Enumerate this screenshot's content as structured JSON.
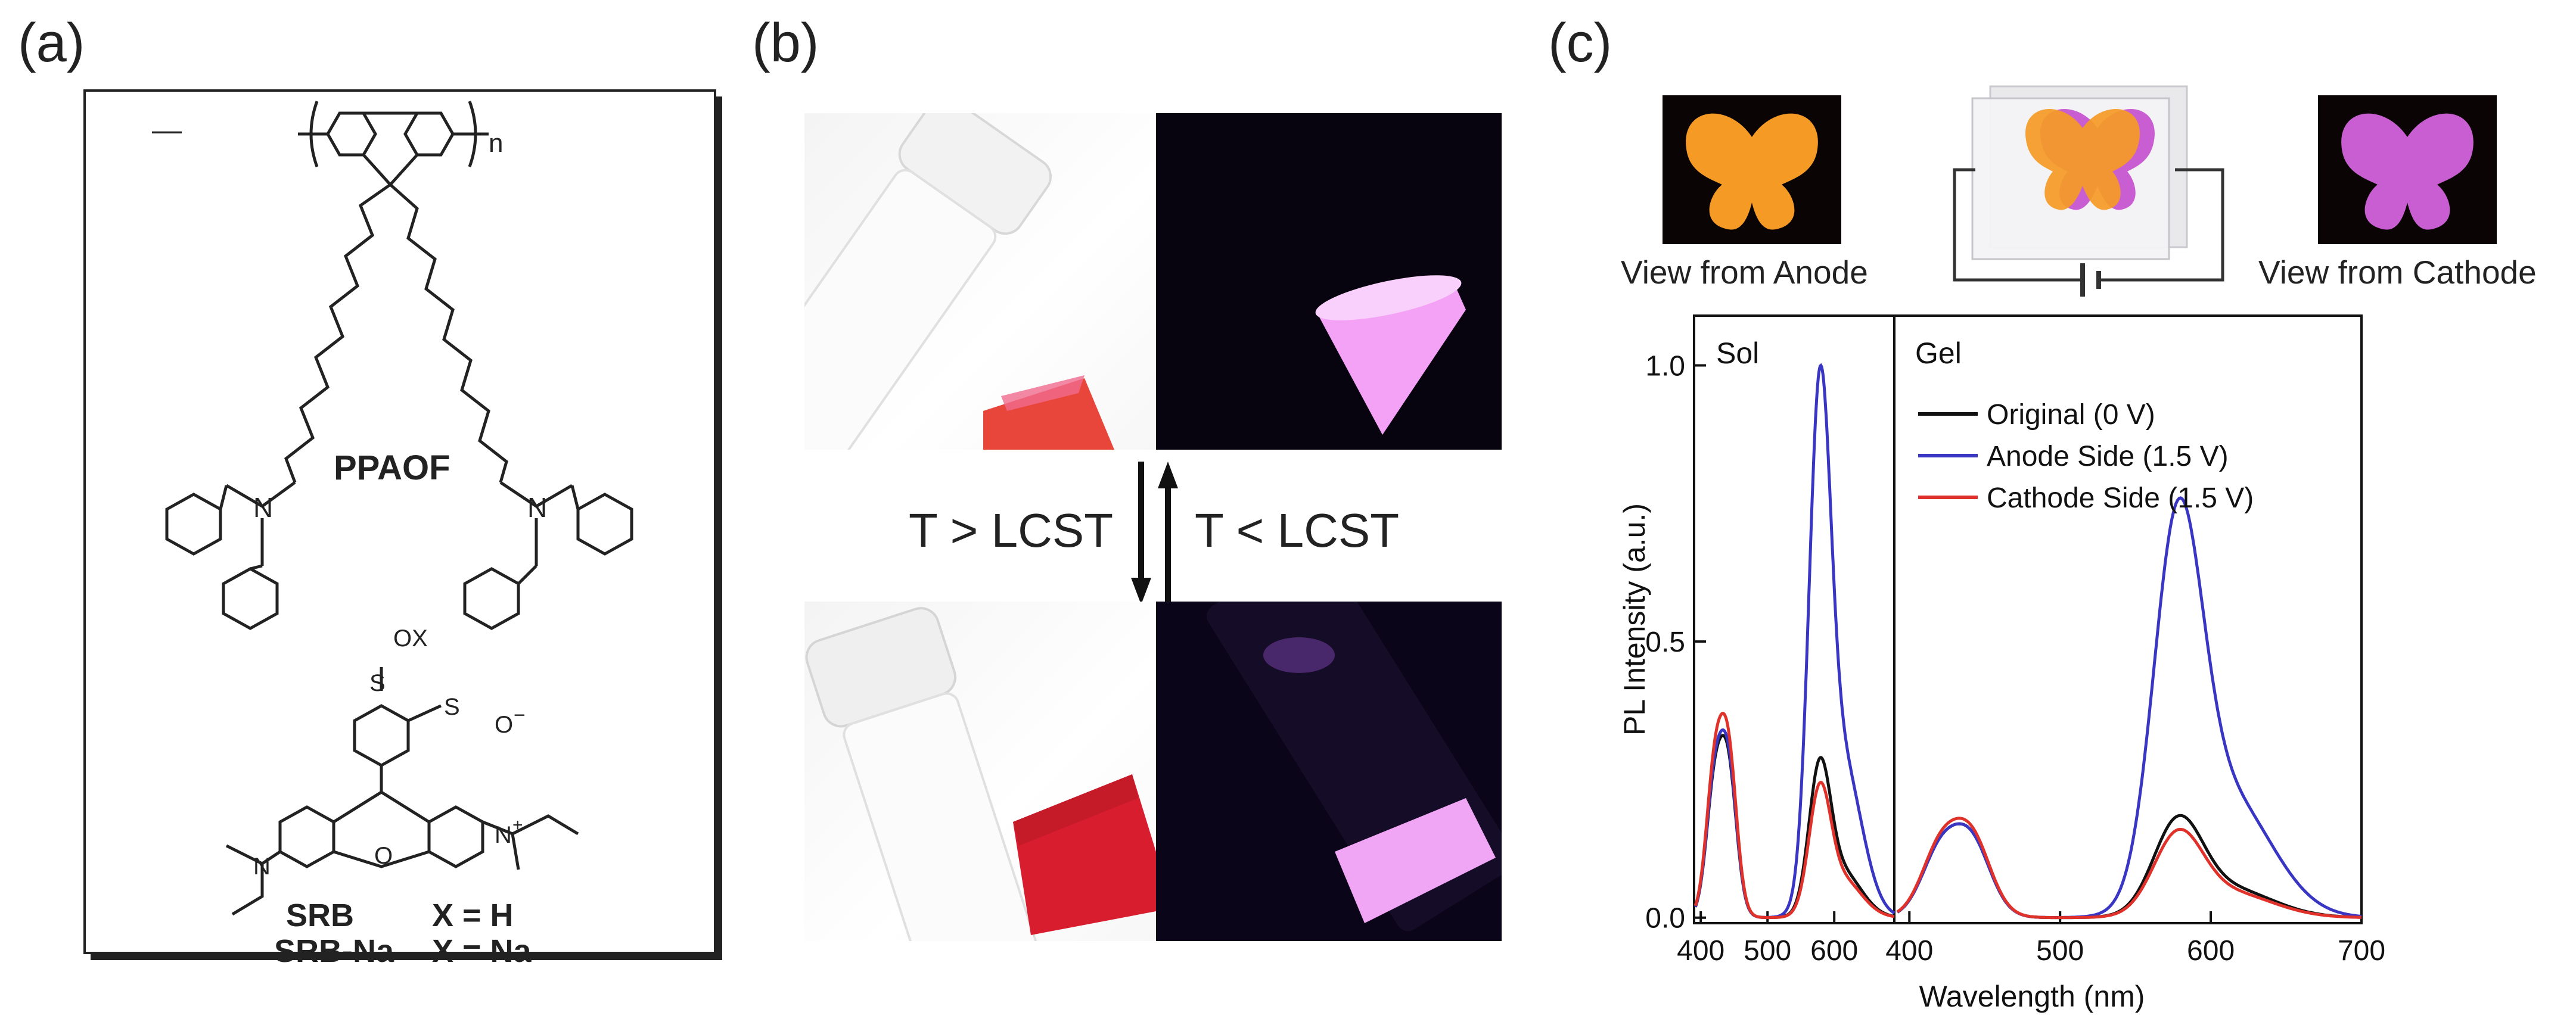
{
  "figure": {
    "labels": [
      "(a)",
      "(b)",
      "(c)"
    ]
  },
  "panel_a": {
    "polymer_name": "PPAOF",
    "repeat_subscript": "n",
    "dye_group_label": "OX",
    "sulfonate_label": "O",
    "sulfonate_charge": "−",
    "iminium_charge": "+",
    "ring_heteroatom": "O",
    "amine_label": "N",
    "sulfur_label": "S",
    "compounds": [
      {
        "name": "SRB",
        "substituent": "X = H"
      },
      {
        "name": "SRB-Na",
        "substituent": "X = Na"
      }
    ]
  },
  "panel_b": {
    "forward_label": "T > LCST",
    "reverse_label": "T < LCST",
    "colors": {
      "red_solution": "#e8463a",
      "pink_emission": "#f3a2f6",
      "dark_bg": "#07030f"
    }
  },
  "panel_c": {
    "view_anode": "View from Anode",
    "view_cathode": "View from Cathode",
    "region_sol": "Sol",
    "region_gel": "Gel",
    "colors": {
      "orange": "#f59a25",
      "magenta": "#c85ed2"
    },
    "chart_data": {
      "type": "line",
      "xlabel": "Wavelength (nm)",
      "ylabel": "PL Intensity (a.u.)",
      "ylim": [
        -0.01,
        1.09
      ],
      "yticks": [
        0.0,
        0.5,
        1.0
      ],
      "ytick_labels": [
        "0.0",
        "0.5",
        "1.0"
      ],
      "sol_xticks": [
        "400",
        "500",
        "600"
      ],
      "gel_xticks": [
        "400",
        "500",
        "600",
        "700"
      ],
      "sol_xrange": [
        390,
        690
      ],
      "gel_xrange": [
        390,
        700
      ],
      "series": [
        {
          "name": "Original (0 V)",
          "color": "#111111",
          "sol": {
            "peak1": 0.33,
            "peak2": 0.29
          },
          "gel": {
            "peak1": 0.17,
            "peak2": 0.185
          }
        },
        {
          "name": "Anode Side (1.5 V)",
          "color": "#3a36c4",
          "sol": {
            "peak1": 0.34,
            "peak2": 1.0
          },
          "gel": {
            "peak1": 0.17,
            "peak2": 0.76
          }
        },
        {
          "name": "Cathode Side (1.5 V)",
          "color": "#e0322b",
          "sol": {
            "peak1": 0.37,
            "peak2": 0.245
          },
          "gel": {
            "peak1": 0.18,
            "peak2": 0.16
          }
        }
      ]
    }
  }
}
